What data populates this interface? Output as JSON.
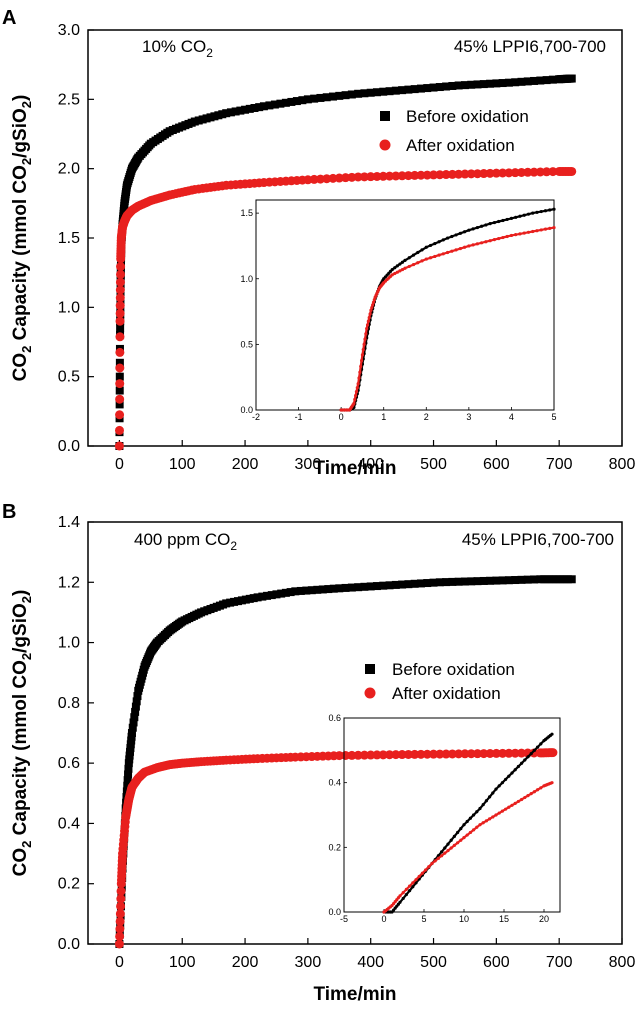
{
  "chart_data": [
    {
      "panel": "A",
      "type": "scatter",
      "xlabel": "Time/min",
      "ylabel_parts": [
        "CO",
        "2",
        " Capacity (mmol CO",
        "2",
        "/gSiO",
        "2",
        ")"
      ],
      "xlim": [
        -50,
        800
      ],
      "ylim": [
        0,
        3.0
      ],
      "xticks": [
        0,
        100,
        200,
        300,
        400,
        500,
        600,
        700,
        800
      ],
      "yticks": [
        0.0,
        0.5,
        1.0,
        1.5,
        2.0,
        2.5,
        3.0
      ],
      "ytick_labels": [
        "0.0",
        "0.5",
        "1.0",
        "1.5",
        "2.0",
        "2.5",
        "3.0"
      ],
      "annotation_left": {
        "text": "10% CO",
        "sub": "2"
      },
      "annotation_right": "45% LPPI6,700-700",
      "legend_position": "upper-right",
      "series": [
        {
          "name": "Before oxidation",
          "color": "#000000",
          "marker": "square",
          "x": [
            0,
            1,
            2,
            3,
            5,
            8,
            12,
            20,
            30,
            50,
            80,
            120,
            170,
            230,
            300,
            380,
            460,
            540,
            620,
            700,
            720
          ],
          "y": [
            0,
            0.8,
            1.2,
            1.45,
            1.6,
            1.75,
            1.88,
            2.0,
            2.08,
            2.18,
            2.27,
            2.34,
            2.4,
            2.45,
            2.5,
            2.54,
            2.57,
            2.6,
            2.62,
            2.645,
            2.65
          ]
        },
        {
          "name": "After oxidation",
          "color": "#e8201e",
          "marker": "circle",
          "x": [
            0,
            1,
            2,
            3,
            5,
            8,
            12,
            20,
            30,
            50,
            80,
            120,
            170,
            230,
            300,
            380,
            460,
            540,
            620,
            700,
            720
          ],
          "y": [
            0,
            0.9,
            1.35,
            1.5,
            1.58,
            1.62,
            1.66,
            1.7,
            1.73,
            1.77,
            1.81,
            1.85,
            1.88,
            1.9,
            1.92,
            1.94,
            1.95,
            1.96,
            1.97,
            1.98,
            1.98
          ]
        }
      ],
      "inset": {
        "xlim": [
          -2,
          5
        ],
        "ylim": [
          0,
          1.6
        ],
        "xticks": [
          -2,
          -1,
          0,
          1,
          2,
          3,
          4,
          5
        ],
        "yticks": [
          0.0,
          0.5,
          1.0,
          1.5
        ],
        "ytick_labels": [
          "0.0",
          "0.5",
          "1.0",
          "1.5"
        ],
        "series": [
          {
            "name": "Before oxidation",
            "color": "#000000",
            "x": [
              0.0,
              0.2,
              0.3,
              0.4,
              0.5,
              0.6,
              0.7,
              0.8,
              0.9,
              1.0,
              1.2,
              1.5,
              2.0,
              2.5,
              3.0,
              3.5,
              4.0,
              4.5,
              5.0
            ],
            "y": [
              0.0,
              0.0,
              0.02,
              0.15,
              0.35,
              0.55,
              0.72,
              0.85,
              0.94,
              1.0,
              1.07,
              1.14,
              1.24,
              1.31,
              1.37,
              1.42,
              1.46,
              1.5,
              1.53
            ]
          },
          {
            "name": "After oxidation",
            "color": "#e8201e",
            "x": [
              0.0,
              0.2,
              0.3,
              0.4,
              0.5,
              0.6,
              0.7,
              0.8,
              0.9,
              1.0,
              1.2,
              1.5,
              2.0,
              2.5,
              3.0,
              3.5,
              4.0,
              4.5,
              5.0
            ],
            "y": [
              0.0,
              0.0,
              0.05,
              0.2,
              0.42,
              0.62,
              0.76,
              0.86,
              0.93,
              0.97,
              1.03,
              1.08,
              1.15,
              1.2,
              1.25,
              1.29,
              1.33,
              1.36,
              1.39
            ]
          }
        ]
      }
    },
    {
      "panel": "B",
      "type": "scatter",
      "xlabel": "Time/min",
      "ylabel_parts": [
        "CO",
        "2",
        " Capacity (mmol CO",
        "2",
        "/gSiO",
        "2",
        ")"
      ],
      "xlim": [
        -50,
        800
      ],
      "ylim": [
        0,
        1.4
      ],
      "xticks": [
        0,
        100,
        200,
        300,
        400,
        500,
        600,
        700,
        800
      ],
      "yticks": [
        0.0,
        0.2,
        0.4,
        0.6,
        0.8,
        1.0,
        1.2,
        1.4
      ],
      "ytick_labels": [
        "0.0",
        "0.2",
        "0.4",
        "0.6",
        "0.8",
        "1.0",
        "1.2",
        "1.4"
      ],
      "annotation_left": {
        "text": "400 ppm CO",
        "sub": "2"
      },
      "annotation_right": "45% LPPI6,700-700",
      "legend_position": "center-right",
      "series": [
        {
          "name": "Before oxidation",
          "color": "#000000",
          "marker": "square",
          "x": [
            0,
            5,
            10,
            15,
            20,
            30,
            40,
            50,
            60,
            80,
            100,
            130,
            170,
            220,
            280,
            350,
            430,
            510,
            590,
            670,
            720
          ],
          "y": [
            0,
            0.25,
            0.45,
            0.6,
            0.7,
            0.84,
            0.92,
            0.97,
            1.0,
            1.04,
            1.07,
            1.1,
            1.13,
            1.15,
            1.17,
            1.18,
            1.19,
            1.2,
            1.205,
            1.21,
            1.21
          ]
        },
        {
          "name": "After oxidation",
          "color": "#e8201e",
          "marker": "circle",
          "x": [
            0,
            3,
            5,
            10,
            15,
            20,
            30,
            40,
            60,
            80,
            100,
            130,
            170,
            220,
            280,
            350,
            430,
            510,
            590,
            670,
            690
          ],
          "y": [
            0,
            0.2,
            0.3,
            0.42,
            0.48,
            0.52,
            0.55,
            0.57,
            0.585,
            0.595,
            0.6,
            0.605,
            0.61,
            0.615,
            0.62,
            0.625,
            0.628,
            0.63,
            0.632,
            0.634,
            0.635
          ]
        }
      ],
      "inset": {
        "xlim": [
          -5,
          22
        ],
        "ylim": [
          0,
          0.6
        ],
        "xticks": [
          -5,
          0,
          5,
          10,
          15,
          20
        ],
        "yticks": [
          0.0,
          0.2,
          0.4,
          0.6
        ],
        "ytick_labels": [
          "0.0",
          "0.2",
          "0.4",
          "0.6"
        ],
        "series": [
          {
            "name": "Before oxidation",
            "color": "#000000",
            "x": [
              0,
              1,
              2,
              4,
              6,
              8,
              10,
              12,
              14,
              16,
              18,
              20,
              21
            ],
            "y": [
              0.0,
              0.0,
              0.03,
              0.09,
              0.15,
              0.21,
              0.27,
              0.32,
              0.38,
              0.43,
              0.48,
              0.53,
              0.55
            ]
          },
          {
            "name": "After oxidation",
            "color": "#e8201e",
            "x": [
              0,
              1,
              2,
              4,
              6,
              8,
              10,
              12,
              14,
              16,
              18,
              20,
              21
            ],
            "y": [
              0.0,
              0.02,
              0.05,
              0.1,
              0.15,
              0.19,
              0.23,
              0.27,
              0.3,
              0.33,
              0.36,
              0.39,
              0.4
            ]
          }
        ]
      }
    }
  ],
  "panels": {
    "A": {
      "label": "A",
      "legend": {
        "before": "Before oxidation",
        "after": "After oxidation"
      }
    },
    "B": {
      "label": "B",
      "legend": {
        "before": "Before oxidation",
        "after": "After oxidation"
      }
    }
  },
  "colors": {
    "before": "#000000",
    "after": "#e8201e"
  }
}
